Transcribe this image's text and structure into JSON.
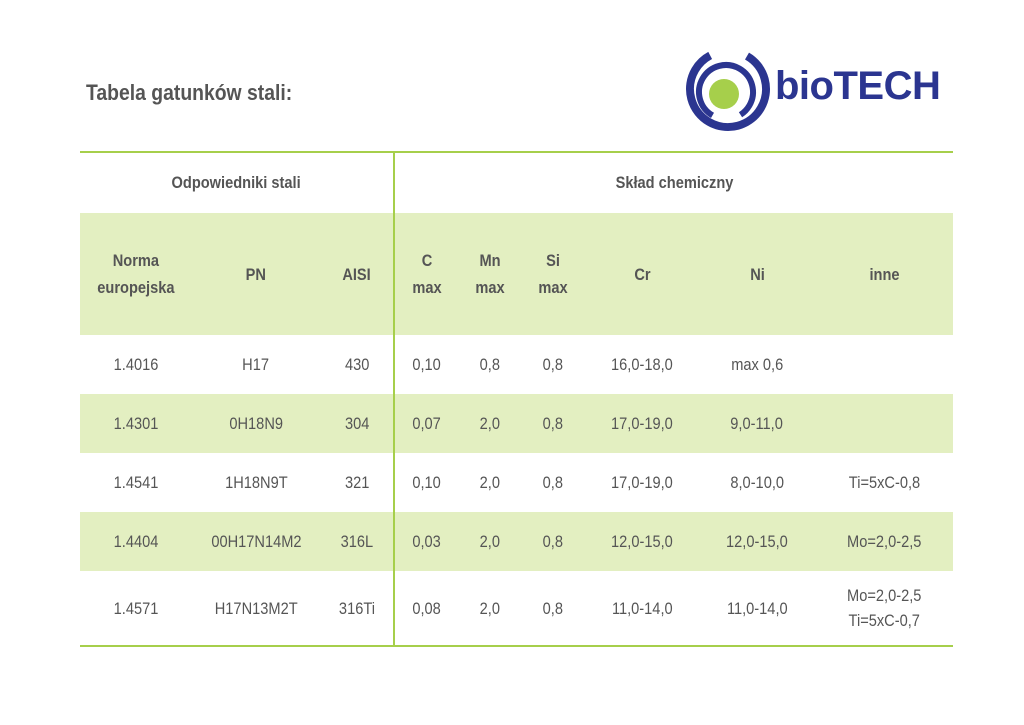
{
  "title": "Tabela gatunków stali:",
  "logo": {
    "text_bio": "bio",
    "text_tech": "TECH",
    "brand_blue": "#2b3590",
    "brand_green": "#a6cf4b"
  },
  "table": {
    "group_headers": {
      "equivalents": "Odpowiedniki stali",
      "composition": "Skład chemiczny"
    },
    "columns": {
      "norm_line1": "Norma",
      "norm_line2": "europejska",
      "pn": "PN",
      "aisi": "AISI",
      "c_line1": "C",
      "c_line2": "max",
      "mn_line1": "Mn",
      "mn_line2": "max",
      "si_line1": "Si",
      "si_line2": "max",
      "cr": "Cr",
      "ni": "Ni",
      "inne": "inne"
    },
    "rows": [
      {
        "norma": "1.4016",
        "pn": "H17",
        "aisi": "430",
        "c": "0,10",
        "mn": "0,8",
        "si": "0,8",
        "cr": "16,0-18,0",
        "ni": "max 0,6",
        "inne1": "",
        "inne2": ""
      },
      {
        "norma": "1.4301",
        "pn": "0H18N9",
        "aisi": "304",
        "c": "0,07",
        "mn": "2,0",
        "si": "0,8",
        "cr": "17,0-19,0",
        "ni": "9,0-11,0",
        "inne1": "",
        "inne2": ""
      },
      {
        "norma": "1.4541",
        "pn": "1H18N9T",
        "aisi": "321",
        "c": "0,10",
        "mn": "2,0",
        "si": "0,8",
        "cr": "17,0-19,0",
        "ni": "8,0-10,0",
        "inne1": "Ti=5xC-0,8",
        "inne2": ""
      },
      {
        "norma": "1.4404",
        "pn": "00H17N14M2",
        "aisi": "316L",
        "c": "0,03",
        "mn": "2,0",
        "si": "0,8",
        "cr": "12,0-15,0",
        "ni": "12,0-15,0",
        "inne1": "Mo=2,0-2,5",
        "inne2": ""
      },
      {
        "norma": "1.4571",
        "pn": "H17N13M2T",
        "aisi": "316Ti",
        "c": "0,08",
        "mn": "2,0",
        "si": "0,8",
        "cr": "11,0-14,0",
        "ni": "11,0-14,0",
        "inne1": "Mo=2,0-2,5",
        "inne2": "Ti=5xC-0,7"
      }
    ]
  }
}
